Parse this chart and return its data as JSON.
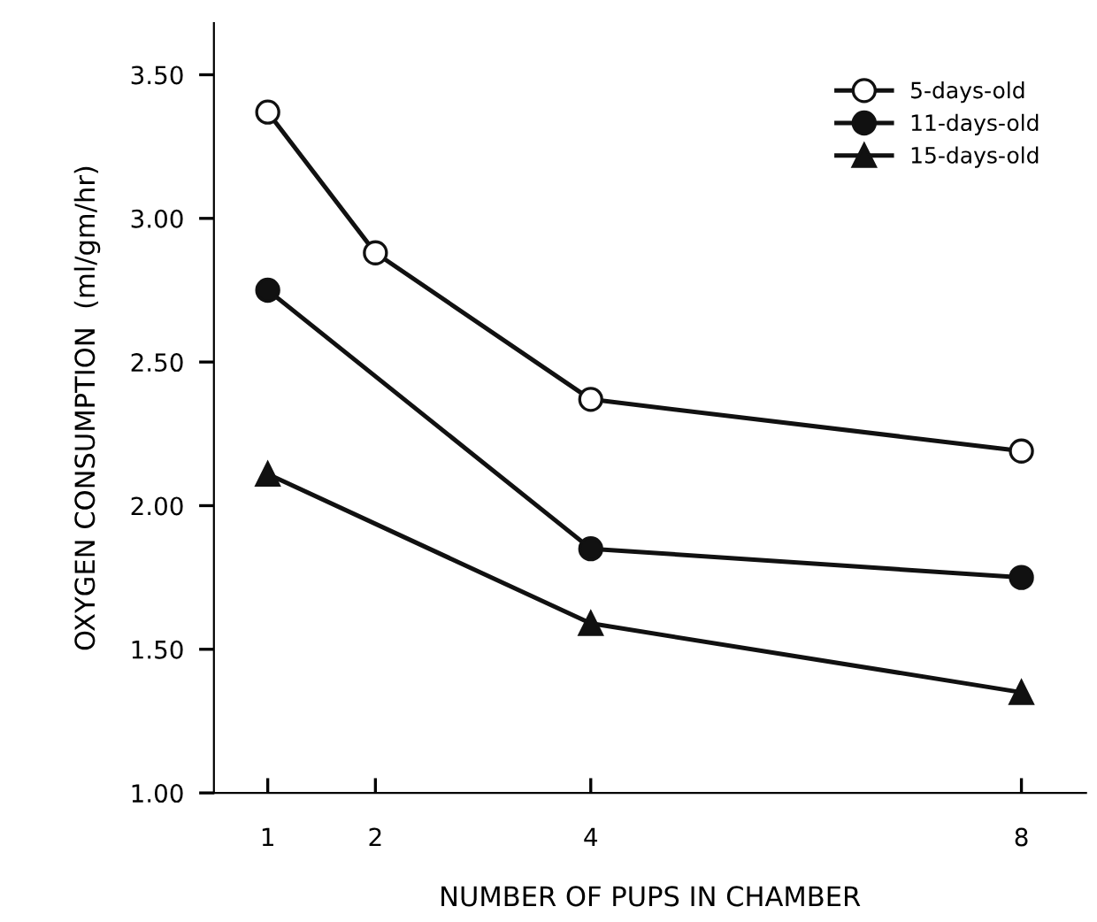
{
  "chart_data": {
    "type": "line",
    "xlabel": "NUMBER OF PUPS IN CHAMBER",
    "ylabel": "OXYGEN CONSUMPTION  (ml/gm/hr)",
    "series": [
      {
        "name": "5-days-old",
        "color": "#ffffff",
        "marker": "circle",
        "x": [
          1,
          2,
          4,
          8
        ],
        "values": [
          3.37,
          2.88,
          2.37,
          2.19
        ]
      },
      {
        "name": "11-days-old",
        "color": "#111111",
        "marker": "circle",
        "x": [
          1,
          4,
          8
        ],
        "values": [
          2.75,
          1.85,
          1.75
        ]
      },
      {
        "name": "15-days-old",
        "color": "#111111",
        "marker": "triangle",
        "x": [
          1,
          4,
          8
        ],
        "values": [
          2.11,
          1.59,
          1.35
        ]
      }
    ],
    "xlim": [
      0.5,
      8.6
    ],
    "xticks": [
      1,
      2,
      4,
      8
    ],
    "ylim": [
      1.0,
      3.68
    ],
    "yticks": [
      {
        "value": 1.0,
        "label": "1.00"
      },
      {
        "value": 1.5,
        "label": "1.50"
      },
      {
        "value": 2.0,
        "label": "2.00"
      },
      {
        "value": 2.5,
        "label": "2.50"
      },
      {
        "value": 3.0,
        "label": "3.00"
      },
      {
        "value": 3.5,
        "label": "3.50"
      }
    ],
    "legend": "top right",
    "grid": false,
    "line_style": "solid"
  }
}
